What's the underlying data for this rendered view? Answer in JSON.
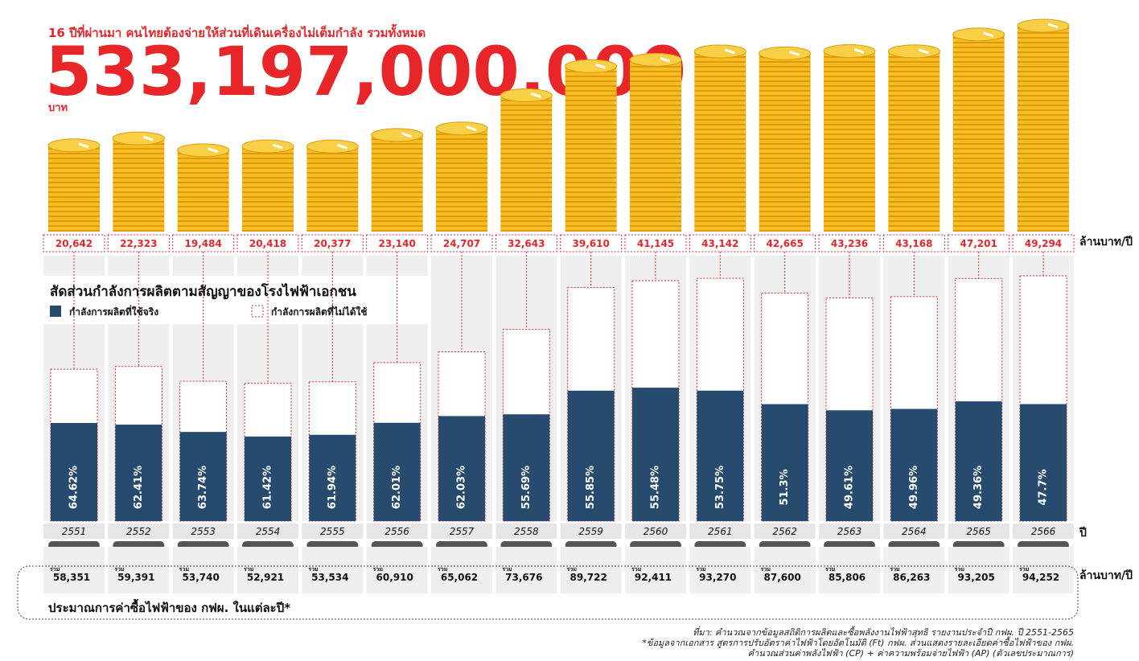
{
  "chart_data": {
    "type": "bar",
    "title": "16 ปีที่ผ่านมา คนไทยต้องจ่ายให้ส่วนที่เดินเครื่องไม่เต็มกำลัง รวมทั้งหมด",
    "total": {
      "value": 533197000000,
      "label": "533,197,000,000",
      "unit": "บาท"
    },
    "categories": [
      "2551",
      "2552",
      "2553",
      "2554",
      "2555",
      "2556",
      "2557",
      "2558",
      "2559",
      "2560",
      "2561",
      "2562",
      "2563",
      "2564",
      "2565",
      "2566"
    ],
    "x_label": "ปี",
    "payments": {
      "unit": "ล้านบาท/ปี",
      "color": "#f5bd1f",
      "label_color": "#e8262a",
      "values": [
        20642,
        22323,
        19484,
        20418,
        20377,
        23140,
        24707,
        32643,
        39610,
        41145,
        43142,
        42665,
        43236,
        43168,
        47201,
        49294
      ],
      "value_labels": [
        "20,642",
        "22,323",
        "19,484",
        "20,418",
        "20,377",
        "23,140",
        "24,707",
        "32,643",
        "39,610",
        "41,145",
        "43,142",
        "42,665",
        "43,236",
        "43,168",
        "47,201",
        "49,294"
      ]
    },
    "capacity": {
      "title": "สัดส่วนกำลังการผลิตตามสัญญาของโรงไฟฟ้าเอกชน",
      "series": [
        {
          "name": "กำลังการผลิตที่ใช้จริง",
          "color": "#264b6e",
          "values": [
            64.62,
            62.41,
            63.74,
            61.42,
            61.94,
            62.01,
            62.03,
            55.69,
            55.85,
            55.48,
            53.75,
            51.3,
            49.61,
            49.96,
            49.36,
            47.7
          ],
          "value_labels": [
            "64.62%",
            "62.41%",
            "63.74%",
            "61.42%",
            "61.94%",
            "62.01%",
            "62.03%",
            "55.69%",
            "55.85%",
            "55.48%",
            "53.75%",
            "51.3%",
            "49.61%",
            "49.96%",
            "49.36%",
            "47.7%"
          ]
        },
        {
          "name": "กำลังการผลิตที่ไม่ได้ใช้",
          "color": "#ffffff"
        }
      ]
    },
    "purchases": {
      "title": "ประมาณการค่าซื้อไฟฟ้าของ กฟผ. ในแต่ละปี*",
      "unit": "ล้านบาท/ปี",
      "item_label": "รวม",
      "values": [
        58351,
        59391,
        53740,
        52921,
        53534,
        60910,
        65062,
        73676,
        89722,
        92411,
        93270,
        87600,
        85806,
        86263,
        93205,
        94252
      ],
      "value_labels": [
        "58,351",
        "59,391",
        "53,740",
        "52,921",
        "53,534",
        "60,910",
        "65,062",
        "73,676",
        "89,722",
        "92,411",
        "93,270",
        "87,600",
        "85,806",
        "86,263",
        "93,205",
        "94,252"
      ]
    },
    "notes": [
      "ที่มา: คำนวณจากข้อมูลสถิติการผลิตและซื้อพลังงานไฟฟ้าสุทธิ รายงานประจำปี กฟผ. ปี 2551-2565",
      "*ข้อมูลจากเอกสาร สูตรการปรับอัตราค่าไฟฟ้าโดยอัตโนมัติ (Ft) กฟผ. ส่วนแสดงรายละเอียดค่าซื้อไฟฟ้าของ กฟผ.",
      "คำนวณส่วนค่าพลังไฟฟ้า (CP) + ค่าความพร้อมจ่ายไฟฟ้า (AP) (ตัวเลขประมาณการ)"
    ]
  }
}
